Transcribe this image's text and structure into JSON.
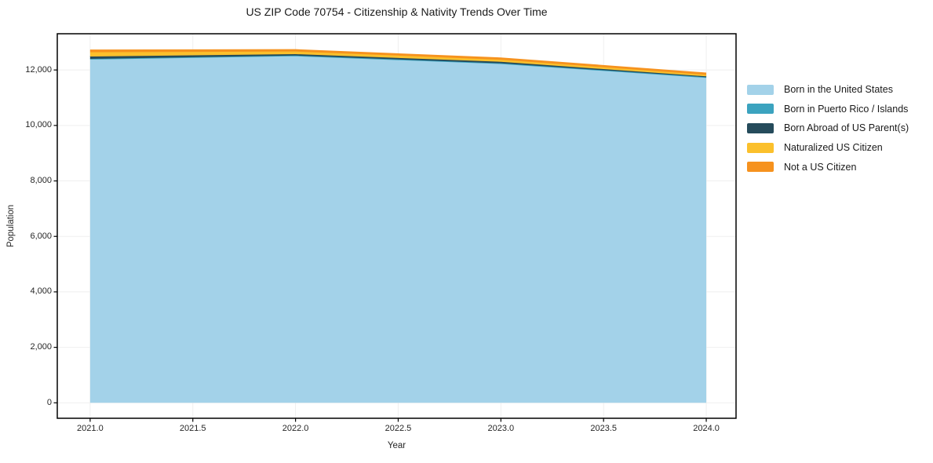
{
  "chart_data": {
    "type": "area",
    "stacked": true,
    "title": "US ZIP Code 70754 - Citizenship & Nativity Trends Over Time",
    "xlabel": "Year",
    "ylabel": "Population",
    "x": [
      2021,
      2022,
      2023,
      2024
    ],
    "series": [
      {
        "name": "Born in the United States",
        "color": "#A3D2E9",
        "values": [
          12400,
          12520,
          12240,
          11740
        ]
      },
      {
        "name": "Born in Puerto Rico / Islands",
        "color": "#3BA3BF",
        "values": [
          0,
          0,
          0,
          0
        ]
      },
      {
        "name": "Born Abroad of US Parent(s)",
        "color": "#254B5B",
        "values": [
          85,
          50,
          55,
          30
        ]
      },
      {
        "name": "Naturalized US Citizen",
        "color": "#FBC02C",
        "values": [
          155,
          95,
          75,
          55
        ]
      },
      {
        "name": "Not a US Citizen",
        "color": "#F6921E",
        "values": [
          70,
          60,
          55,
          55
        ]
      }
    ],
    "xlim": [
      2020.84,
      2024.145
    ],
    "ylim": [
      -557,
      13306
    ],
    "x_ticks": [
      2021.0,
      2021.5,
      2022.0,
      2022.5,
      2023.0,
      2023.5,
      2024.0
    ],
    "x_tick_labels": [
      "2021.0",
      "2021.5",
      "2022.0",
      "2022.5",
      "2023.0",
      "2023.5",
      "2024.0"
    ],
    "y_ticks": [
      0,
      2000,
      4000,
      6000,
      8000,
      10000,
      12000
    ],
    "y_tick_labels": [
      "0",
      "2,000",
      "4,000",
      "6,000",
      "8,000",
      "10,000",
      "12,000"
    ],
    "grid": true,
    "legend_position": "outside-right"
  },
  "colors": {
    "background": "#ffffff",
    "grid": "#efefef",
    "spine": "#000000",
    "text": "#262626"
  }
}
